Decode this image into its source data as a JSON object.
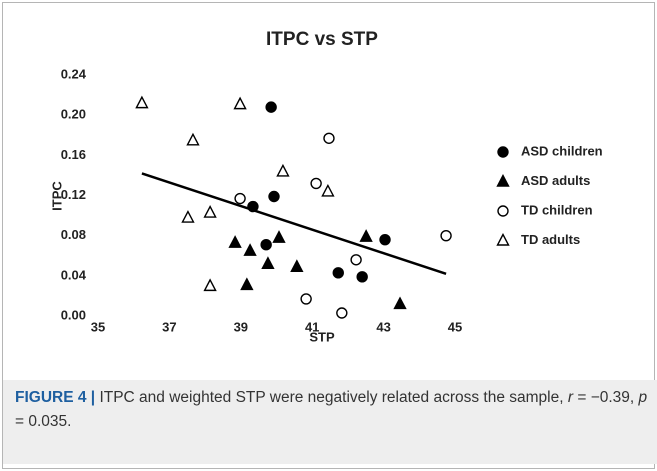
{
  "chart_data": {
    "type": "scatter",
    "title": "ITPC vs STP",
    "xlabel": "STP",
    "ylabel": "ITPC",
    "xlim": [
      35,
      45
    ],
    "xticks": [
      35,
      37,
      39,
      41,
      43,
      45
    ],
    "ylim": [
      0,
      0.24
    ],
    "yticks": [
      {
        "value": 0,
        "label": "0.00"
      },
      {
        "value": 0.04,
        "label": "0.04"
      },
      {
        "value": 0.08,
        "label": "0.08"
      },
      {
        "value": 0.12,
        "label": "0.12"
      },
      {
        "value": 0.16,
        "label": "0.16"
      },
      {
        "value": 0.2,
        "label": "0.20"
      },
      {
        "value": 0.24,
        "label": "0.24"
      }
    ],
    "legend": "right",
    "series": [
      {
        "name": "ASD children",
        "marker": "circle",
        "filled": true,
        "color": "#000000",
        "x": [
          39.85,
          39.34,
          39.93,
          39.71,
          41.73,
          42.4,
          43.04
        ],
        "values": [
          0.208,
          0.109,
          0.119,
          0.071,
          0.043,
          0.039,
          0.076
        ]
      },
      {
        "name": "ASD adults",
        "marker": "triangle",
        "filled": true,
        "color": "#000000",
        "x": [
          38.84,
          39.26,
          40.07,
          39.76,
          40.57,
          39.17,
          42.51,
          43.46
        ],
        "values": [
          0.073,
          0.065,
          0.078,
          0.052,
          0.049,
          0.031,
          0.079,
          0.012
        ]
      },
      {
        "name": "TD children",
        "marker": "circle",
        "filled": false,
        "color": "#000000",
        "x": [
          38.98,
          41.47,
          41.11,
          42.23,
          40.83,
          41.83,
          44.75
        ],
        "values": [
          0.117,
          0.177,
          0.132,
          0.056,
          0.017,
          0.003,
          0.08
        ]
      },
      {
        "name": "TD adults",
        "marker": "triangle",
        "filled": false,
        "color": "#000000",
        "x": [
          36.23,
          37.66,
          38.98,
          40.18,
          41.44,
          37.52,
          38.14,
          38.14
        ],
        "values": [
          0.212,
          0.175,
          0.211,
          0.144,
          0.124,
          0.098,
          0.103,
          0.03
        ]
      }
    ],
    "trendline": {
      "x": [
        36.23,
        44.75
      ],
      "values": [
        0.142,
        0.042
      ],
      "color": "#000000"
    }
  },
  "caption": {
    "label": "FIGURE 4 |",
    "parts": [
      " ITPC and weighted STP were negatively related across the sample, ",
      "r",
      " = −0.39, ",
      "p",
      " = 0.035."
    ]
  }
}
